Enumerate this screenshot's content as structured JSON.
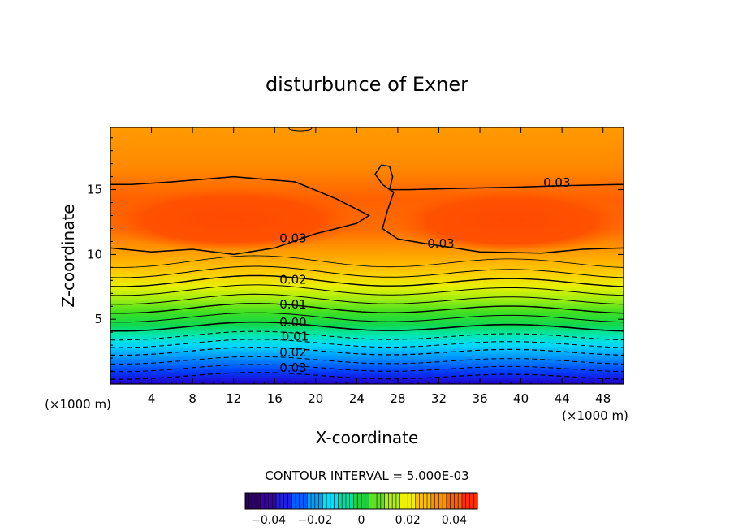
{
  "chart_data": {
    "type": "heatmap",
    "title": "disturbunce of Exner",
    "xlabel": "X-coordinate",
    "ylabel": "Z-coordinate",
    "x_unit_left": "(×1000 m)",
    "x_unit_right": "(×1000 m)",
    "xlim": [
      0,
      50
    ],
    "ylim": [
      0,
      19.8
    ],
    "x_ticks": [
      4,
      8,
      12,
      16,
      20,
      24,
      28,
      32,
      36,
      40,
      44,
      48
    ],
    "y_ticks": [
      5,
      10,
      15
    ],
    "grid": false,
    "contour_interval_label": "CONTOUR INTERVAL = 5.000E-03",
    "contour_labels": [
      {
        "text": "0.03",
        "x": 17.8,
        "z": 11.0
      },
      {
        "text": "0.03",
        "x": 32.2,
        "z": 10.6
      },
      {
        "text": "0.03",
        "x": 43.5,
        "z": 15.3
      },
      {
        "text": "0.02",
        "x": 17.8,
        "z": 7.8
      },
      {
        "text": "0.01",
        "x": 17.8,
        "z": 5.9
      },
      {
        "text": "0.00",
        "x": 17.8,
        "z": 4.5
      },
      {
        "text": "0.01",
        "x": 18.0,
        "z": 3.4
      },
      {
        "text": "0.02",
        "x": 17.8,
        "z": 2.2
      },
      {
        "text": "0.03",
        "x": 17.8,
        "z": 1.0
      }
    ],
    "colorbar": {
      "min": -0.05,
      "max": 0.05,
      "tick_values": [
        -0.04,
        -0.02,
        0,
        0.02,
        0.04
      ],
      "tick_labels": [
        "−0.04",
        "−0.02",
        "0",
        "0.02",
        "0.04"
      ]
    },
    "colors": {
      "low": "#3a00b0",
      "zero": "#22cc22",
      "high": "#ff4a00",
      "contour": "#000000"
    }
  }
}
